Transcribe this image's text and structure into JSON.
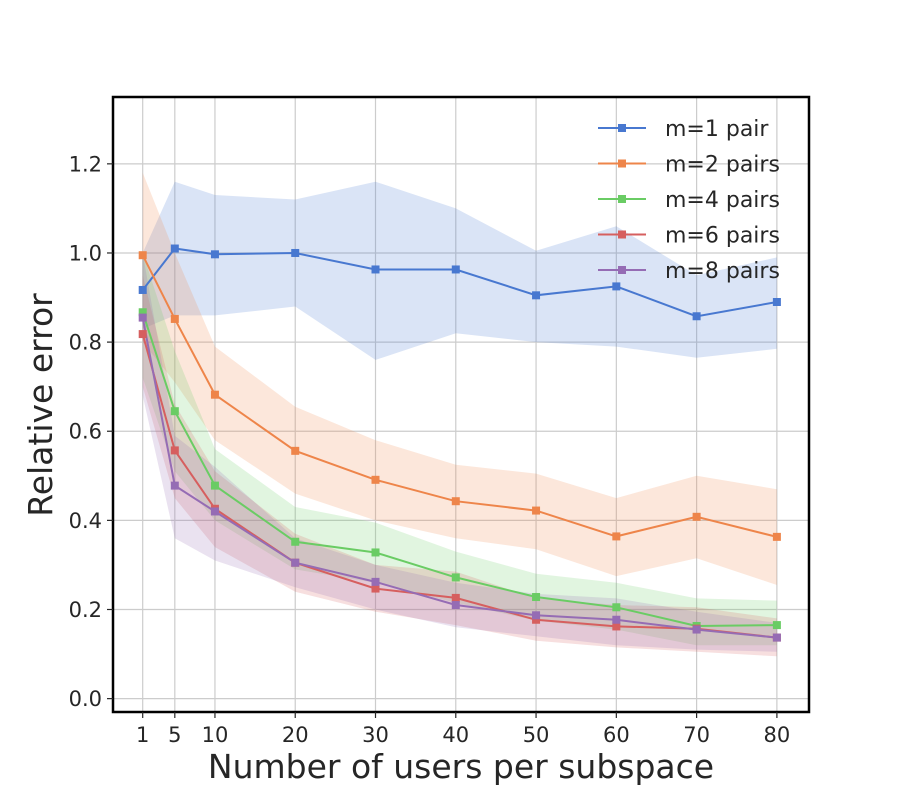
{
  "chart_data": {
    "type": "line",
    "title": "",
    "xlabel": "Number of users per subspace",
    "ylabel": "Relative error",
    "x": [
      1,
      5,
      10,
      20,
      30,
      40,
      50,
      60,
      70,
      80
    ],
    "x_tick_labels": [
      "1",
      "5",
      "10",
      "20",
      "30",
      "40",
      "50",
      "60",
      "70",
      "80"
    ],
    "xlim": [
      -2.7,
      84.0
    ],
    "ylim": [
      -0.03,
      1.35
    ],
    "y_ticks": [
      0.0,
      0.2,
      0.4,
      0.6,
      0.8,
      1.0,
      1.2
    ],
    "y_tick_labels": [
      "0.0",
      "0.2",
      "0.4",
      "0.6",
      "0.8",
      "1.0",
      "1.2"
    ],
    "grid": true,
    "legend_position": "top-right",
    "series": [
      {
        "name": "m=1 pair",
        "color": "#4878d0",
        "values": [
          0.917,
          1.01,
          0.997,
          1.0,
          0.963,
          0.963,
          0.905,
          0.925,
          0.858,
          0.89
        ],
        "lower": [
          0.83,
          0.86,
          0.86,
          0.88,
          0.76,
          0.82,
          0.8,
          0.79,
          0.765,
          0.785
        ],
        "upper": [
          1.0,
          1.16,
          1.13,
          1.12,
          1.16,
          1.1,
          1.005,
          1.06,
          0.95,
          0.99
        ]
      },
      {
        "name": "m=2 pairs",
        "color": "#ee854a",
        "values": [
          0.995,
          0.852,
          0.682,
          0.556,
          0.491,
          0.443,
          0.422,
          0.364,
          0.408,
          0.363
        ],
        "lower": [
          0.8,
          0.71,
          0.58,
          0.46,
          0.4,
          0.36,
          0.335,
          0.275,
          0.315,
          0.255
        ],
        "upper": [
          1.18,
          1.0,
          0.79,
          0.655,
          0.58,
          0.525,
          0.505,
          0.45,
          0.5,
          0.47
        ]
      },
      {
        "name": "m=4 pairs",
        "color": "#6acc64",
        "values": [
          0.867,
          0.645,
          0.478,
          0.352,
          0.328,
          0.272,
          0.228,
          0.205,
          0.163,
          0.165
        ],
        "lower": [
          0.72,
          0.51,
          0.4,
          0.29,
          0.26,
          0.215,
          0.175,
          0.155,
          0.12,
          0.12
        ],
        "upper": [
          1.0,
          0.78,
          0.56,
          0.43,
          0.395,
          0.33,
          0.28,
          0.26,
          0.225,
          0.22
        ]
      },
      {
        "name": "m=6 pairs",
        "color": "#d65f5f",
        "values": [
          0.818,
          0.557,
          0.426,
          0.305,
          0.247,
          0.226,
          0.177,
          0.162,
          0.157,
          0.137
        ],
        "lower": [
          0.7,
          0.45,
          0.34,
          0.24,
          0.195,
          0.165,
          0.13,
          0.115,
          0.105,
          0.095
        ],
        "upper": [
          0.95,
          0.66,
          0.51,
          0.37,
          0.3,
          0.285,
          0.225,
          0.21,
          0.205,
          0.18
        ]
      },
      {
        "name": "m=8 pairs",
        "color": "#956cb4",
        "values": [
          0.855,
          0.478,
          0.42,
          0.305,
          0.262,
          0.21,
          0.187,
          0.177,
          0.155,
          0.137
        ],
        "lower": [
          0.68,
          0.36,
          0.31,
          0.25,
          0.2,
          0.16,
          0.14,
          0.12,
          0.11,
          0.105
        ],
        "upper": [
          1.0,
          0.59,
          0.52,
          0.36,
          0.3,
          0.26,
          0.235,
          0.225,
          0.195,
          0.17
        ]
      }
    ]
  }
}
